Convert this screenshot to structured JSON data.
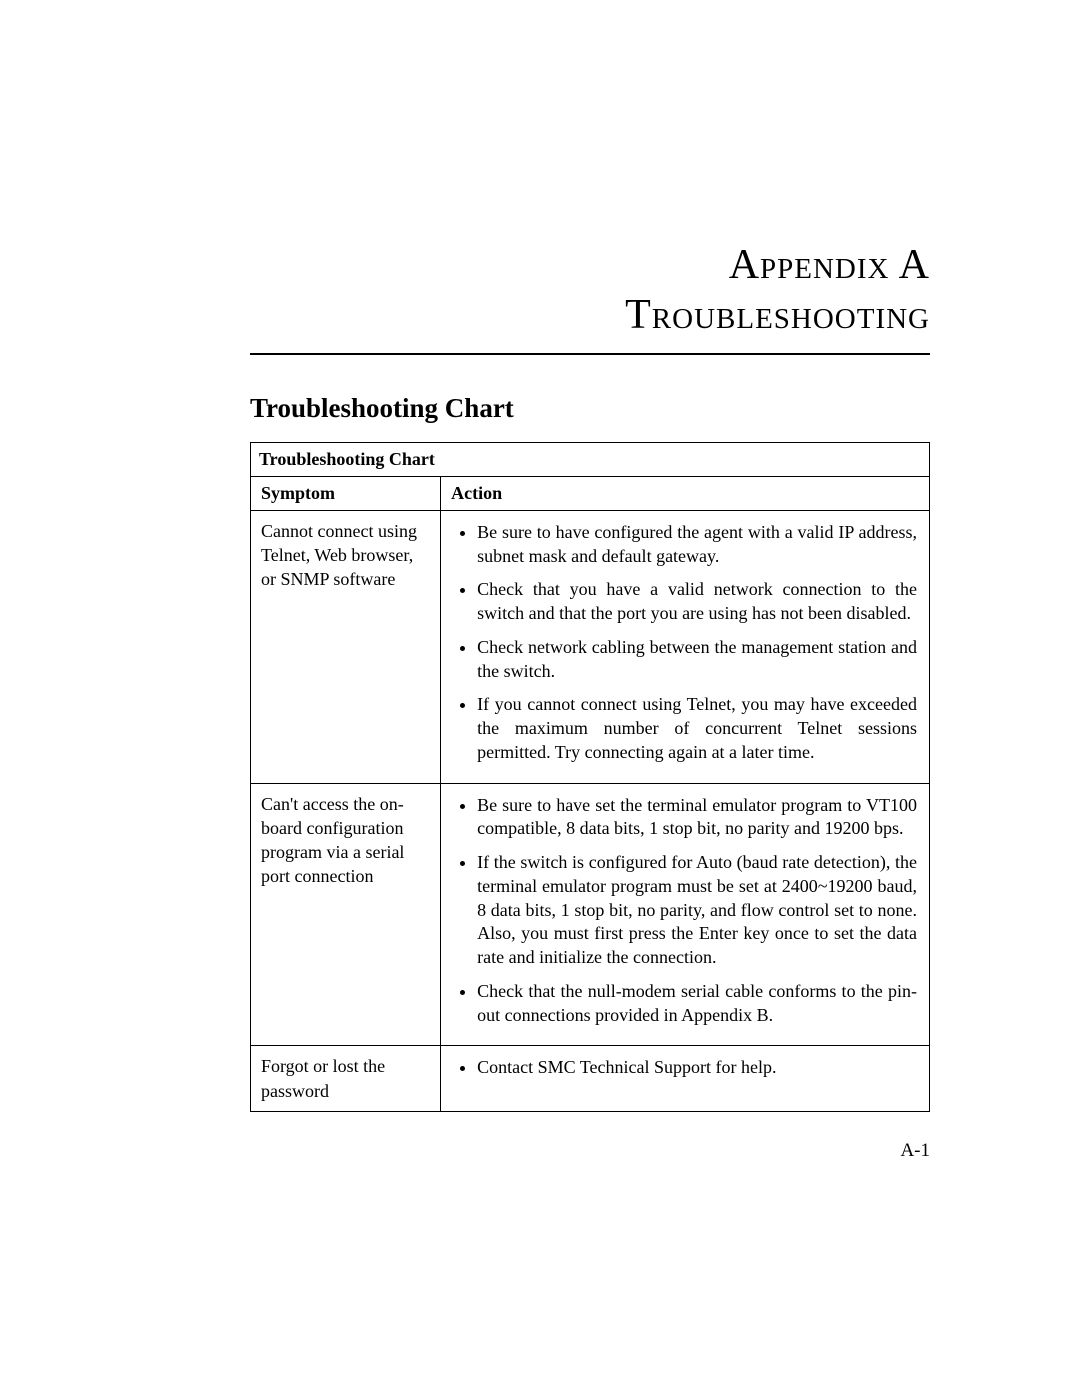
{
  "title": {
    "line1": "Appendix A",
    "line2": "Troubleshooting"
  },
  "sectionTitle": "Troubleshooting Chart",
  "table": {
    "caption": "Troubleshooting Chart",
    "headers": {
      "symptom": "Symptom",
      "action": "Action"
    },
    "rows": [
      {
        "symptom": "Cannot connect using Telnet, Web browser, or SNMP software",
        "actions": [
          "Be sure to have configured the agent with a valid IP address, subnet mask and default gateway.",
          "Check that you have a valid network connection to the switch and that the port you are using has not been disabled.",
          "Check network cabling between the management station and the switch.",
          "If you cannot connect using Telnet, you may have exceeded the maximum number of concurrent Telnet sessions permitted. Try connecting again at a later time."
        ]
      },
      {
        "symptom": "Can't access the on-board configuration program via a serial port connection",
        "actions": [
          "Be sure to have set the terminal emulator program to VT100 compatible, 8 data bits, 1 stop bit, no parity and 19200 bps.",
          "If the switch is configured for Auto (baud rate detection), the terminal emulator program must be set at 2400~19200 baud, 8 data bits, 1 stop bit, no parity, and flow control set to none. Also, you must first press the Enter key once to set the data rate and initialize the connection.",
          "Check that the null-modem serial cable conforms to the pin-out connections provided in Appendix B."
        ]
      },
      {
        "symptom": "Forgot or lost the password",
        "actions": [
          "Contact SMC Technical Support for help."
        ]
      }
    ]
  },
  "pageNumber": "A-1"
}
